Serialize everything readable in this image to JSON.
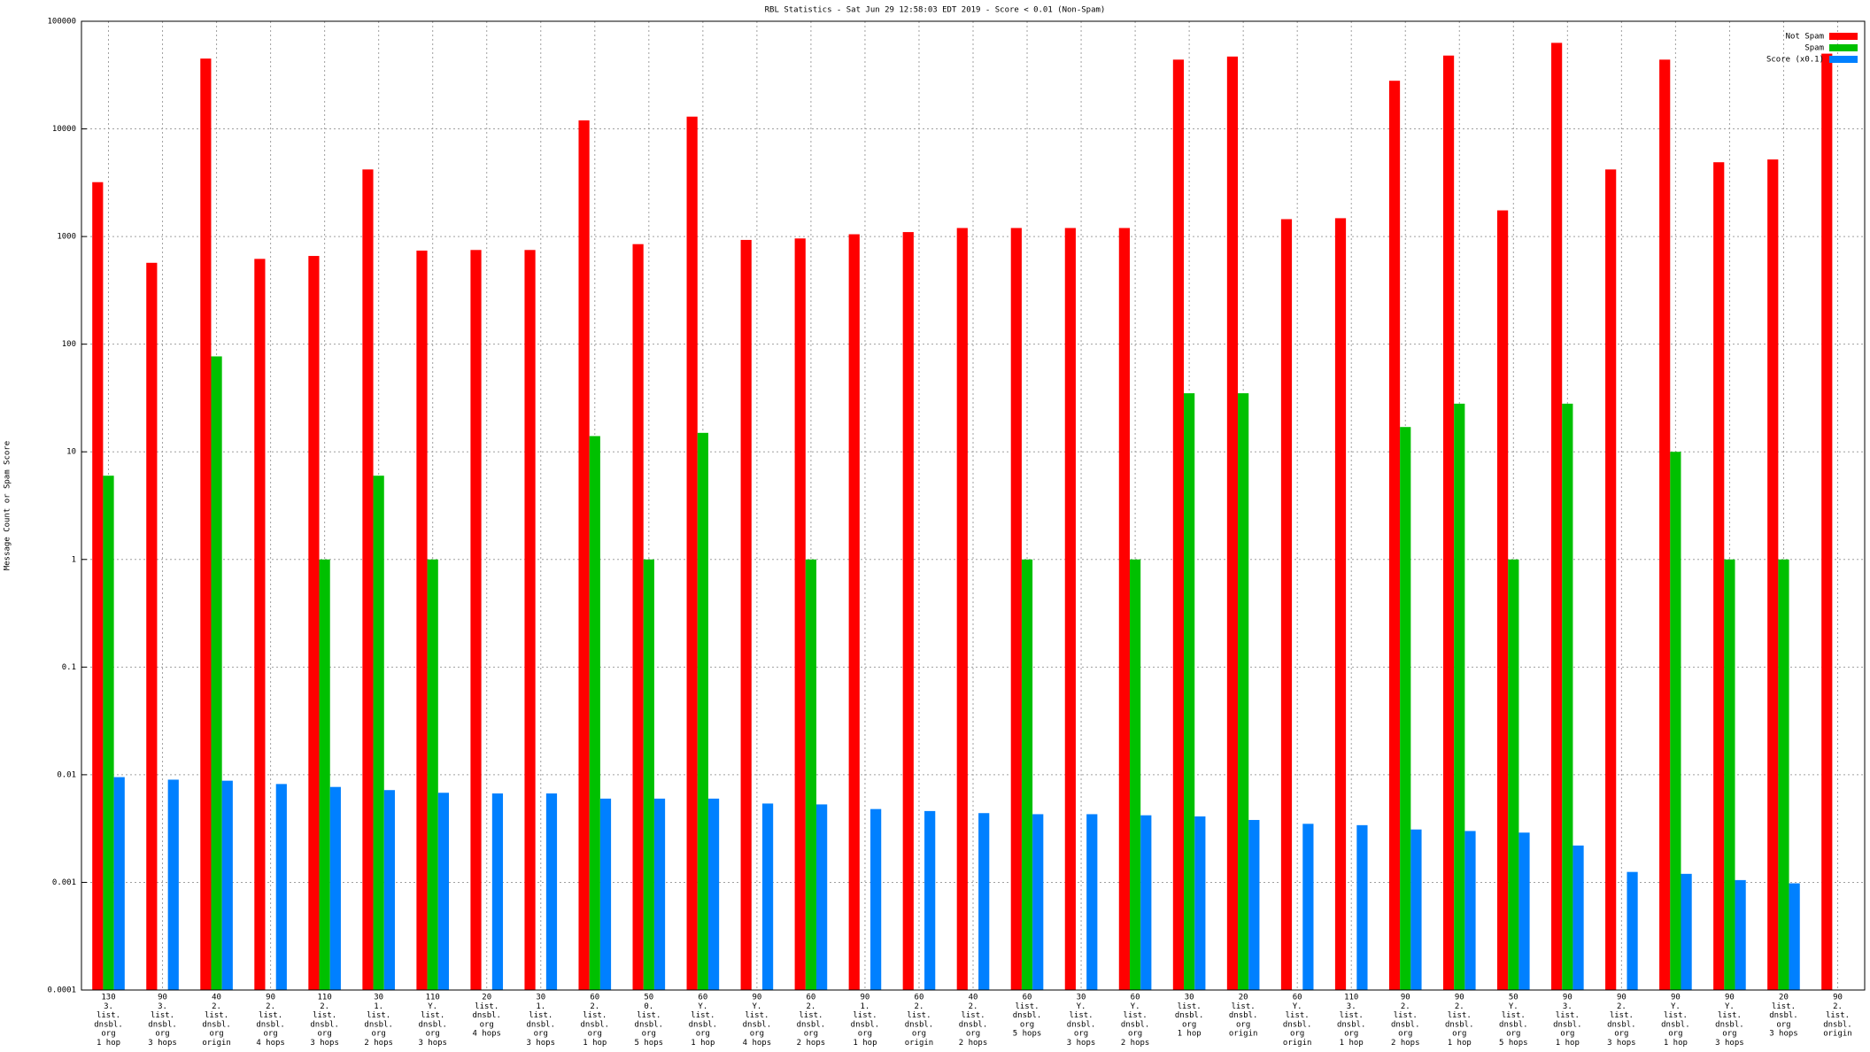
{
  "chart_data": {
    "type": "bar",
    "title": "RBL Statistics - Sat Jun 29 12:58:03 EDT 2019 - Score < 0.01 (Non-Spam)",
    "y_label": "Message Count or Spam Score",
    "log_scale": true,
    "grid": true,
    "legend": "top-right",
    "ylim": [
      0.0001,
      100000
    ],
    "yticks": [
      0.0001,
      0.001,
      0.01,
      0.1,
      1,
      10,
      100,
      1000,
      10000,
      100000
    ],
    "categories": [
      [
        "130",
        "3.",
        "list.",
        "dnsbl.",
        "org",
        "1 hop"
      ],
      [
        "90",
        "3.",
        "list.",
        "dnsbl.",
        "org",
        "3 hops"
      ],
      [
        "40",
        "2.",
        "list.",
        "dnsbl.",
        "org",
        "origin"
      ],
      [
        "90",
        "2.",
        "list.",
        "dnsbl.",
        "org",
        "4 hops"
      ],
      [
        "110",
        "2.",
        "list.",
        "dnsbl.",
        "org",
        "3 hops"
      ],
      [
        "30",
        "1.",
        "list.",
        "dnsbl.",
        "org",
        "2 hops"
      ],
      [
        "110",
        "Y.",
        "list.",
        "dnsbl.",
        "org",
        "3 hops"
      ],
      [
        "20",
        "list.",
        "dnsbl.",
        "org",
        "4 hops"
      ],
      [
        "30",
        "1.",
        "list.",
        "dnsbl.",
        "org",
        "3 hops"
      ],
      [
        "60",
        "2.",
        "list.",
        "dnsbl.",
        "org",
        "1 hop"
      ],
      [
        "50",
        "0.",
        "list.",
        "dnsbl.",
        "org",
        "5 hops"
      ],
      [
        "60",
        "Y.",
        "list.",
        "dnsbl.",
        "org",
        "1 hop"
      ],
      [
        "90",
        "Y.",
        "list.",
        "dnsbl.",
        "org",
        "4 hops"
      ],
      [
        "60",
        "2.",
        "list.",
        "dnsbl.",
        "org",
        "2 hops"
      ],
      [
        "90",
        "1.",
        "list.",
        "dnsbl.",
        "org",
        "1 hop"
      ],
      [
        "60",
        "2.",
        "list.",
        "dnsbl.",
        "org",
        "origin"
      ],
      [
        "40",
        "2.",
        "list.",
        "dnsbl.",
        "org",
        "2 hops"
      ],
      [
        "60",
        "list.",
        "dnsbl.",
        "org",
        "5 hops"
      ],
      [
        "30",
        "Y.",
        "list.",
        "dnsbl.",
        "org",
        "3 hops"
      ],
      [
        "60",
        "Y.",
        "list.",
        "dnsbl.",
        "org",
        "2 hops"
      ],
      [
        "30",
        "list.",
        "dnsbl.",
        "org",
        "1 hop"
      ],
      [
        "20",
        "list.",
        "dnsbl.",
        "org",
        "origin"
      ],
      [
        "60",
        "Y.",
        "list.",
        "dnsbl.",
        "org",
        "origin"
      ],
      [
        "110",
        "3.",
        "list.",
        "dnsbl.",
        "org",
        "1 hop"
      ],
      [
        "90",
        "2.",
        "list.",
        "dnsbl.",
        "org",
        "2 hops"
      ],
      [
        "90",
        "2.",
        "list.",
        "dnsbl.",
        "org",
        "1 hop"
      ],
      [
        "50",
        "Y.",
        "list.",
        "dnsbl.",
        "org",
        "5 hops"
      ],
      [
        "90",
        "3.",
        "list.",
        "dnsbl.",
        "org",
        "1 hop"
      ],
      [
        "90",
        "2.",
        "list.",
        "dnsbl.",
        "org",
        "3 hops"
      ],
      [
        "90",
        "Y.",
        "list.",
        "dnsbl.",
        "org",
        "1 hop"
      ],
      [
        "90",
        "Y.",
        "list.",
        "dnsbl.",
        "org",
        "3 hops"
      ],
      [
        "20",
        "list.",
        "dnsbl.",
        "org",
        "3 hops"
      ],
      [
        "90",
        "2.",
        "list.",
        "dnsbl.",
        "origin"
      ]
    ],
    "series": [
      {
        "name": "Not Spam",
        "color": "#ff0000",
        "values": [
          3200,
          570,
          45000,
          620,
          660,
          4200,
          740,
          750,
          750,
          12000,
          850,
          13000,
          930,
          960,
          1050,
          1100,
          1200,
          1200,
          1200,
          1200,
          44000,
          47000,
          1450,
          1480,
          28000,
          48000,
          1750,
          63000,
          4200,
          44000,
          4900,
          5200,
          50000
        ]
      },
      {
        "name": "Spam",
        "color": "#00c000",
        "values": [
          6,
          null,
          77,
          null,
          1,
          6,
          1,
          null,
          null,
          14,
          1,
          15,
          null,
          1,
          null,
          null,
          null,
          1,
          null,
          1,
          35,
          35,
          null,
          null,
          17,
          28,
          1,
          28,
          null,
          10,
          1,
          1,
          null
        ]
      },
      {
        "name": "Score (x0.1)",
        "color": "#0080ff",
        "values": [
          0.0095,
          0.009,
          0.0088,
          0.0082,
          0.0077,
          0.0072,
          0.0068,
          0.0067,
          0.0067,
          0.006,
          0.006,
          0.006,
          0.0054,
          0.0053,
          0.0048,
          0.0046,
          0.0044,
          0.0043,
          0.0043,
          0.0042,
          0.0041,
          0.0038,
          0.0035,
          0.0034,
          0.0031,
          0.003,
          0.0029,
          0.0022,
          0.00125,
          0.0012,
          0.00105,
          0.00098,
          null
        ]
      }
    ]
  }
}
